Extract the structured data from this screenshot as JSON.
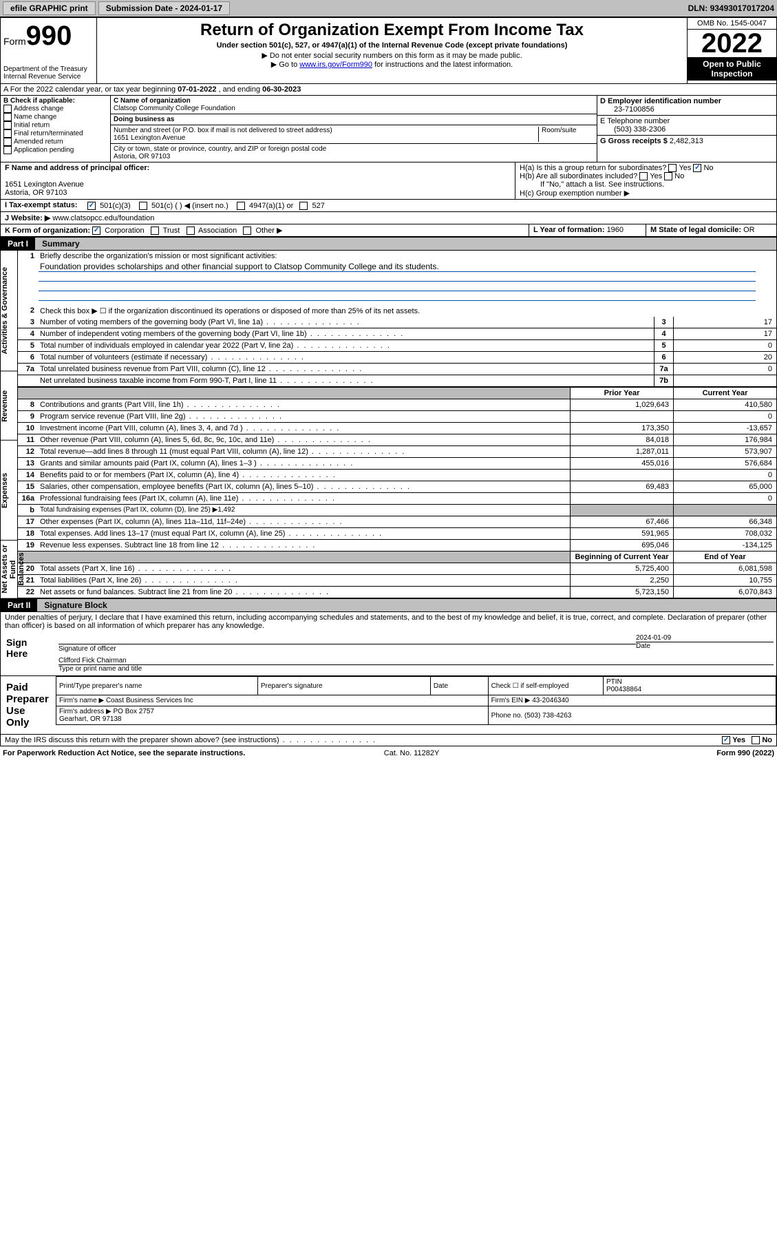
{
  "top": {
    "efile": "efile GRAPHIC print",
    "subdate_label": "Submission Date - ",
    "subdate": "2024-01-17",
    "dln_label": "DLN: ",
    "dln": "93493017017204"
  },
  "header": {
    "form_label": "Form",
    "form_num": "990",
    "title": "Return of Organization Exempt From Income Tax",
    "sub1": "Under section 501(c), 527, or 4947(a)(1) of the Internal Revenue Code (except private foundations)",
    "sub2": "▶ Do not enter social security numbers on this form as it may be made public.",
    "sub3_pre": "▶ Go to ",
    "sub3_link": "www.irs.gov/Form990",
    "sub3_post": " for instructions and the latest information.",
    "dept": "Department of the Treasury\nInternal Revenue Service",
    "omb": "OMB No. 1545-0047",
    "year": "2022",
    "inspect": "Open to Public Inspection"
  },
  "a": {
    "text": "A For the 2022 calendar year, or tax year beginning ",
    "begin": "07-01-2022",
    "mid": " , and ending ",
    "end": "06-30-2023"
  },
  "b": {
    "header": "B Check if applicable:",
    "items": [
      "Address change",
      "Name change",
      "Initial return",
      "Final return/terminated",
      "Amended return",
      "Application pending"
    ]
  },
  "c": {
    "name_label": "C Name of organization",
    "name": "Clatsop Community College Foundation",
    "dba_label": "Doing business as",
    "street_label": "Number and street (or P.O. box if mail is not delivered to street address)",
    "room_label": "Room/suite",
    "street": "1651 Lexington Avenue",
    "city_label": "City or town, state or province, country, and ZIP or foreign postal code",
    "city": "Astoria, OR  97103"
  },
  "d": {
    "label": "D Employer identification number",
    "val": "23-7100856"
  },
  "e": {
    "label": "E Telephone number",
    "val": "(503) 338-2306"
  },
  "g": {
    "label": "G Gross receipts $",
    "val": "2,482,313"
  },
  "f": {
    "label": "F Name and address of principal officer:",
    "addr1": "1651 Lexington Avenue",
    "addr2": "Astoria, OR  97103"
  },
  "h": {
    "a": "H(a)  Is this a group return for subordinates?",
    "b": "H(b)  Are all subordinates included?",
    "b_note": "If \"No,\" attach a list. See instructions.",
    "c": "H(c)  Group exemption number ▶",
    "yes": "Yes",
    "no": "No"
  },
  "i": {
    "label": "I  Tax-exempt status:",
    "o1": "501(c)(3)",
    "o2": "501(c) (  ) ◀ (insert no.)",
    "o3": "4947(a)(1) or",
    "o4": "527"
  },
  "j": {
    "label": "J  Website: ▶ ",
    "val": "www.clatsopcc.edu/foundation"
  },
  "k": {
    "label": "K Form of organization:",
    "o": [
      "Corporation",
      "Trust",
      "Association",
      "Other ▶"
    ]
  },
  "l": {
    "label": "L Year of formation: ",
    "val": "1960"
  },
  "m": {
    "label": "M State of legal domicile: ",
    "val": "OR"
  },
  "part1": {
    "num": "Part I",
    "title": "Summary"
  },
  "summary": {
    "q1": "Briefly describe the organization's mission or most significant activities:",
    "mission": "Foundation provides scholarships and other financial support to Clatsop Community College and its students.",
    "q2": "Check this box ▶ ☐  if the organization discontinued its operations or disposed of more than 25% of its net assets.",
    "rows_gov": [
      {
        "n": "3",
        "d": "Number of voting members of the governing body (Part VI, line 1a)",
        "b": "3",
        "v": "17"
      },
      {
        "n": "4",
        "d": "Number of independent voting members of the governing body (Part VI, line 1b)",
        "b": "4",
        "v": "17"
      },
      {
        "n": "5",
        "d": "Total number of individuals employed in calendar year 2022 (Part V, line 2a)",
        "b": "5",
        "v": "0"
      },
      {
        "n": "6",
        "d": "Total number of volunteers (estimate if necessary)",
        "b": "6",
        "v": "20"
      },
      {
        "n": "7a",
        "d": "Total unrelated business revenue from Part VIII, column (C), line 12",
        "b": "7a",
        "v": "0"
      },
      {
        "n": "",
        "d": "Net unrelated business taxable income from Form 990-T, Part I, line 11",
        "b": "7b",
        "v": ""
      }
    ],
    "prior_label": "Prior Year",
    "current_label": "Current Year",
    "rows_rev": [
      {
        "n": "8",
        "d": "Contributions and grants (Part VIII, line 1h)",
        "p": "1,029,643",
        "c": "410,580"
      },
      {
        "n": "9",
        "d": "Program service revenue (Part VIII, line 2g)",
        "p": "",
        "c": "0"
      },
      {
        "n": "10",
        "d": "Investment income (Part VIII, column (A), lines 3, 4, and 7d )",
        "p": "173,350",
        "c": "-13,657"
      },
      {
        "n": "11",
        "d": "Other revenue (Part VIII, column (A), lines 5, 6d, 8c, 9c, 10c, and 11e)",
        "p": "84,018",
        "c": "176,984"
      },
      {
        "n": "12",
        "d": "Total revenue—add lines 8 through 11 (must equal Part VIII, column (A), line 12)",
        "p": "1,287,011",
        "c": "573,907"
      }
    ],
    "rows_exp": [
      {
        "n": "13",
        "d": "Grants and similar amounts paid (Part IX, column (A), lines 1–3 )",
        "p": "455,016",
        "c": "576,684"
      },
      {
        "n": "14",
        "d": "Benefits paid to or for members (Part IX, column (A), line 4)",
        "p": "",
        "c": "0"
      },
      {
        "n": "15",
        "d": "Salaries, other compensation, employee benefits (Part IX, column (A), lines 5–10)",
        "p": "69,483",
        "c": "65,000"
      },
      {
        "n": "16a",
        "d": "Professional fundraising fees (Part IX, column (A), line 11e)",
        "p": "",
        "c": "0"
      },
      {
        "n": "b",
        "d": "Total fundraising expenses (Part IX, column (D), line 25) ▶1,492",
        "p": null,
        "c": null
      },
      {
        "n": "17",
        "d": "Other expenses (Part IX, column (A), lines 11a–11d, 11f–24e)",
        "p": "67,466",
        "c": "66,348"
      },
      {
        "n": "18",
        "d": "Total expenses. Add lines 13–17 (must equal Part IX, column (A), line 25)",
        "p": "591,965",
        "c": "708,032"
      },
      {
        "n": "19",
        "d": "Revenue less expenses. Subtract line 18 from line 12",
        "p": "695,046",
        "c": "-134,125"
      }
    ],
    "begin_label": "Beginning of Current Year",
    "end_label": "End of Year",
    "rows_net": [
      {
        "n": "20",
        "d": "Total assets (Part X, line 16)",
        "p": "5,725,400",
        "c": "6,081,598"
      },
      {
        "n": "21",
        "d": "Total liabilities (Part X, line 26)",
        "p": "2,250",
        "c": "10,755"
      },
      {
        "n": "22",
        "d": "Net assets or fund balances. Subtract line 21 from line 20",
        "p": "5,723,150",
        "c": "6,070,843"
      }
    ]
  },
  "tabs": {
    "gov": "Activities & Governance",
    "rev": "Revenue",
    "exp": "Expenses",
    "net": "Net Assets or Fund Balances"
  },
  "part2": {
    "num": "Part II",
    "title": "Signature Block"
  },
  "sig": {
    "declare": "Under penalties of perjury, I declare that I have examined this return, including accompanying schedules and statements, and to the best of my knowledge and belief, it is true, correct, and complete. Declaration of preparer (other than officer) is based on all information of which preparer has any knowledge.",
    "sign_here": "Sign Here",
    "sig_of_officer": "Signature of officer",
    "date_label": "Date",
    "date": "2024-01-09",
    "officer": "Clifford Fick  Chairman",
    "type_name": "Type or print name and title",
    "paid": "Paid Preparer Use Only",
    "p_name": "Print/Type preparer's name",
    "p_sig": "Preparer's signature",
    "p_date": "Date",
    "p_check": "Check ☐ if self-employed",
    "ptin_label": "PTIN",
    "ptin": "P00438864",
    "firm_name_label": "Firm's name ▶",
    "firm_name": "Coast Business Services Inc",
    "firm_ein_label": "Firm's EIN ▶",
    "firm_ein": "43-2046340",
    "firm_addr_label": "Firm's address ▶",
    "firm_addr": "PO Box 2757\nGearhart, OR  97138",
    "phone_label": "Phone no.",
    "phone": "(503) 738-4263",
    "discuss": "May the IRS discuss this return with the preparer shown above? (see instructions)"
  },
  "footer": {
    "pra": "For Paperwork Reduction Act Notice, see the separate instructions.",
    "cat": "Cat. No. 11282Y",
    "form": "Form 990 (2022)"
  }
}
